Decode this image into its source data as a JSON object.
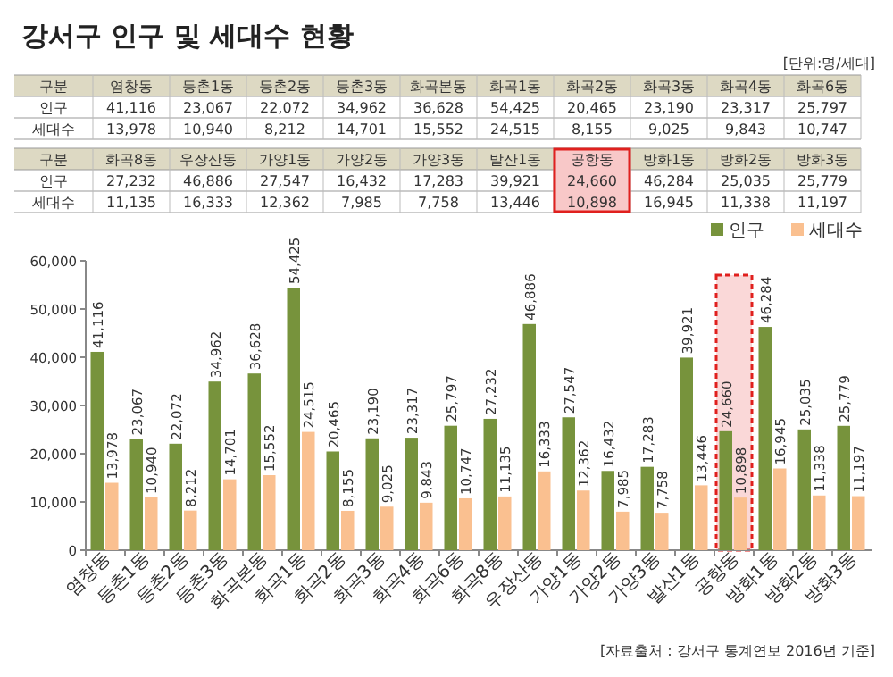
{
  "chart_data": {
    "type": "bar",
    "title": "강서구 인구 및 세대수 현황",
    "annotations": [
      "[단위:명/세대]",
      "구분",
      "[자료출처 : 강서구 통계연보 2016년 기준]"
    ],
    "categories": [
      "염창동",
      "등촌1동",
      "등촌2동",
      "등촌3동",
      "화곡본동",
      "화곡1동",
      "화곡2동",
      "화곡3동",
      "화곡4동",
      "화곡6동",
      "화곡8동",
      "우장산동",
      "가양1동",
      "가양2동",
      "가양3동",
      "발산1동",
      "공항동",
      "방화1동",
      "방화2동",
      "방화3동"
    ],
    "series": [
      {
        "name": "인구",
        "color": "#77933c",
        "values": [
          41116,
          23067,
          22072,
          34962,
          36628,
          54425,
          20465,
          23190,
          23317,
          25797,
          27232,
          46886,
          27547,
          16432,
          17283,
          39921,
          24660,
          46284,
          25035,
          25779
        ],
        "value_labels": [
          "41,116",
          "23,067",
          "22,072",
          "34,962",
          "36,628",
          "54,425",
          "20,465",
          "23,190",
          "23,317",
          "25,797",
          "27,232",
          "46,886",
          "27,547",
          "16,432",
          "17,283",
          "39,921",
          "24,660",
          "46,284",
          "25,035",
          "25,779"
        ]
      },
      {
        "name": "세대수",
        "color": "#fac090",
        "values": [
          13978,
          10940,
          8212,
          14701,
          15552,
          24515,
          8155,
          9025,
          9843,
          10747,
          11135,
          16333,
          12362,
          7985,
          7758,
          13446,
          10898,
          16945,
          11338,
          11197
        ],
        "value_labels": [
          "13,978",
          "10,940",
          "8,212",
          "14,701",
          "15,552",
          "24,515",
          "8,155",
          "9,025",
          "9,843",
          "10,747",
          "11,135",
          "16,333",
          "12,362",
          "7,985",
          "7,758",
          "13,446",
          "10,898",
          "16,945",
          "11,338",
          "11,197"
        ]
      }
    ],
    "ylim": [
      0,
      60000
    ],
    "yticks": [
      0,
      {
        "value": 10000,
        "label": "10,000"
      },
      {
        "value": 20000,
        "label": "20,000"
      },
      {
        "value": 30000,
        "label": "30,000"
      },
      {
        "value": 40000,
        "label": "40,000"
      },
      {
        "value": 50000,
        "label": "50,000"
      },
      {
        "value": 60000,
        "label": "60,000"
      }
    ],
    "bands": [
      {
        "axis": "x",
        "from": "공항동",
        "to": "공항동",
        "color": "#e0201e"
      }
    ],
    "legend": "top right",
    "grid": false
  }
}
